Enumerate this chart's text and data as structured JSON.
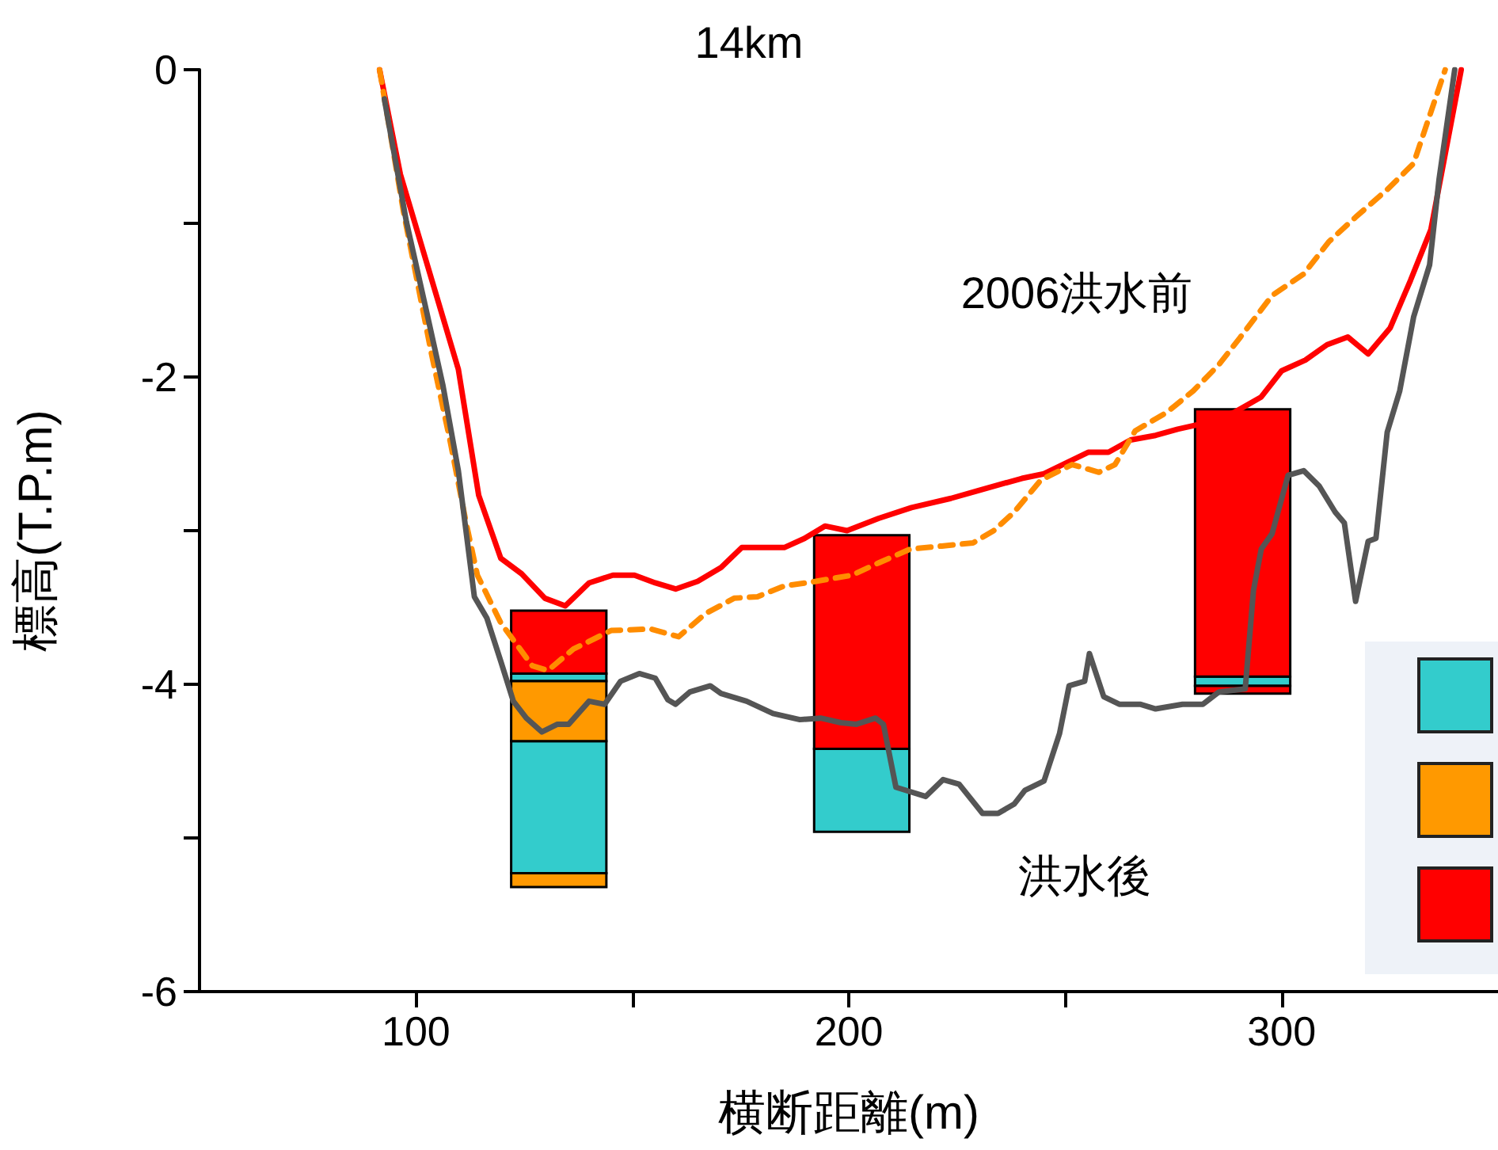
{
  "chart_data": {
    "type": "line",
    "title": "14km",
    "xlabel": "横断距離(m)",
    "ylabel": "標高(T.P.m)",
    "xlim": [
      50,
      350
    ],
    "xticks": [
      {
        "value": 100,
        "label": "100"
      },
      {
        "value": 150,
        "label": null
      },
      {
        "value": 200,
        "label": "200"
      },
      {
        "value": 250,
        "label": null
      },
      {
        "value": 300,
        "label": "300"
      }
    ],
    "ylim": [
      -6,
      0
    ],
    "yticks": [
      {
        "value": -6,
        "label": "-6"
      },
      {
        "value": -5,
        "label": null
      },
      {
        "value": -4,
        "label": "-4"
      },
      {
        "value": -3,
        "label": null
      },
      {
        "value": -2,
        "label": "-2"
      },
      {
        "value": -1,
        "label": null
      },
      {
        "value": 0,
        "label": "0"
      }
    ],
    "annotations": [
      "2006洪水前",
      "洪水後"
    ],
    "series": [
      {
        "type": "bar",
        "color": "#33cccc",
        "x": [
          133,
          203,
          291
        ],
        "base": [
          -5.23,
          -4.96,
          -4.01
        ],
        "values": [
          0.86,
          0.54,
          0.06
        ]
      },
      {
        "type": "bar",
        "color": "#33cccc",
        "x": [
          133
        ],
        "base": [
          -3.98
        ],
        "values": [
          0.05
        ]
      },
      {
        "type": "bar",
        "color": "#ff9900",
        "x": [
          133
        ],
        "base": [
          -5.32
        ],
        "values": [
          0.09
        ]
      },
      {
        "type": "bar",
        "color": "#ff9900",
        "x": [
          133
        ],
        "base": [
          -4.37
        ],
        "values": [
          0.39
        ]
      },
      {
        "type": "bar",
        "color": "#ff0000",
        "x": [
          133,
          203,
          291
        ],
        "base": [
          -3.93,
          -4.42,
          -3.95
        ],
        "values": [
          0.41,
          1.39,
          1.74
        ]
      },
      {
        "type": "bar",
        "color": "#ff0000",
        "x": [
          291
        ],
        "base": [
          -4.06
        ],
        "values": [
          0.05
        ]
      },
      {
        "color": "#ff0000",
        "line_style": "solid",
        "x": [
          91.6,
          96.4,
          109.8,
          114.5,
          119.6,
          124.4,
          129.8,
          134.5,
          140.0,
          145.5,
          150.5,
          155.3,
          160.0,
          165.1,
          170.5,
          175.3,
          185.1,
          189.8,
          194.5,
          199.6,
          206.9,
          214.5,
          223.6,
          229.8,
          240.0,
          245.1,
          255.3,
          260.0,
          265.1,
          270.9,
          276.0,
          280.7,
          289.1,
          295.3,
          300.0,
          305.5,
          310.5,
          315.3,
          320.0,
          325.1,
          329.8,
          334.5,
          337.8,
          341.5
        ],
        "values": [
          0,
          -0.68,
          -1.95,
          -2.77,
          -3.18,
          -3.28,
          -3.44,
          -3.49,
          -3.34,
          -3.29,
          -3.29,
          -3.34,
          -3.38,
          -3.33,
          -3.24,
          -3.11,
          -3.11,
          -3.05,
          -2.97,
          -3.0,
          -2.92,
          -2.85,
          -2.79,
          -2.74,
          -2.66,
          -2.63,
          -2.49,
          -2.49,
          -2.41,
          -2.38,
          -2.34,
          -2.31,
          -2.23,
          -2.13,
          -1.96,
          -1.89,
          -1.79,
          -1.74,
          -1.85,
          -1.68,
          -1.37,
          -1.04,
          -0.55,
          0
        ]
      },
      {
        "color": "#ff8c00",
        "line_style": "dashed",
        "x": [
          91.6,
          97.1,
          103.6,
          108.0,
          111.6,
          114.2,
          119.6,
          126.9,
          130.5,
          136.4,
          145.1,
          154.2,
          160.7,
          166.9,
          173.5,
          178.9,
          185.1,
          192.4,
          200.7,
          206.9,
          214.2,
          221.5,
          228.7,
          233.5,
          238.2,
          244.4,
          251.6,
          257.8,
          261.5,
          266.2,
          273.5,
          279.6,
          285.5,
          290.5,
          297.8,
          305.1,
          310.9,
          317.1,
          324.4,
          330.5,
          334.2,
          337.8
        ],
        "values": [
          0,
          -0.92,
          -1.85,
          -2.43,
          -2.95,
          -3.29,
          -3.6,
          -3.88,
          -3.91,
          -3.77,
          -3.65,
          -3.64,
          -3.69,
          -3.54,
          -3.44,
          -3.43,
          -3.36,
          -3.33,
          -3.29,
          -3.21,
          -3.12,
          -3.1,
          -3.08,
          -3.0,
          -2.88,
          -2.67,
          -2.57,
          -2.62,
          -2.57,
          -2.35,
          -2.23,
          -2.09,
          -1.92,
          -1.74,
          -1.47,
          -1.33,
          -1.12,
          -0.96,
          -0.78,
          -0.61,
          -0.3,
          0
        ]
      },
      {
        "color": "#555555",
        "line_style": "solid",
        "x": [
          92.7,
          97.8,
          102.5,
          106.2,
          109.8,
          113.5,
          116.4,
          119.6,
          122.5,
          125.5,
          129.1,
          132.7,
          135.3,
          140.0,
          143.6,
          147.3,
          151.6,
          155.3,
          158.2,
          160.0,
          163.3,
          168.0,
          170.5,
          176.4,
          182.5,
          188.7,
          193.5,
          198.2,
          201.8,
          206.2,
          208.0,
          210.9,
          217.8,
          221.8,
          225.5,
          230.9,
          234.5,
          238.2,
          240.7,
          245.1,
          248.7,
          250.9,
          254.5,
          255.6,
          258.9,
          262.5,
          267.3,
          270.9,
          277.1,
          281.8,
          285.5,
          291.6,
          293.5,
          295.3,
          297.8,
          301.5,
          305.1,
          308.7,
          312.4,
          314.5,
          317.1,
          320.0,
          321.8,
          324.4,
          327.3,
          330.5,
          334.2,
          336.4,
          340.0
        ],
        "values": [
          -0.19,
          -0.99,
          -1.58,
          -2.05,
          -2.61,
          -3.43,
          -3.57,
          -3.85,
          -4.11,
          -4.22,
          -4.31,
          -4.26,
          -4.26,
          -4.11,
          -4.13,
          -3.98,
          -3.93,
          -3.96,
          -4.1,
          -4.13,
          -4.05,
          -4.01,
          -4.06,
          -4.11,
          -4.19,
          -4.23,
          -4.22,
          -4.25,
          -4.26,
          -4.22,
          -4.26,
          -4.67,
          -4.73,
          -4.62,
          -4.65,
          -4.84,
          -4.84,
          -4.78,
          -4.69,
          -4.63,
          -4.32,
          -4.01,
          -3.98,
          -3.8,
          -4.08,
          -4.13,
          -4.13,
          -4.16,
          -4.13,
          -4.13,
          -4.05,
          -4.03,
          -3.39,
          -3.12,
          -3.02,
          -2.64,
          -2.61,
          -2.71,
          -2.88,
          -2.95,
          -3.46,
          -3.07,
          -3.05,
          -2.36,
          -2.09,
          -1.61,
          -1.27,
          -0.71,
          0
        ]
      }
    ]
  }
}
